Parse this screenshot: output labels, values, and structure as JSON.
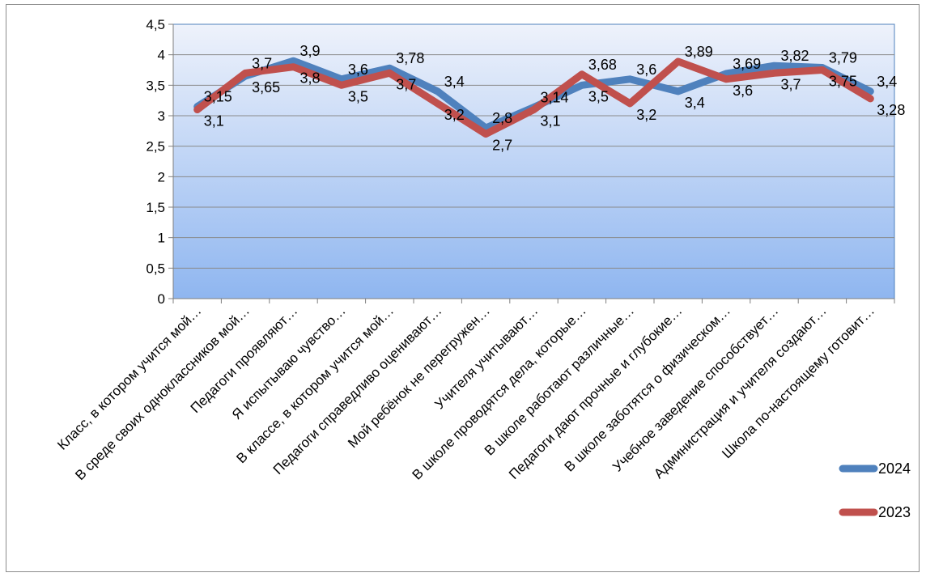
{
  "chart_data": {
    "type": "line",
    "title": "",
    "xlabel": "",
    "ylabel": "",
    "ylim": [
      0,
      4.5
    ],
    "y_ticks": [
      "0",
      "0,5",
      "1",
      "1,5",
      "2",
      "2,5",
      "3",
      "3,5",
      "4",
      "4,5"
    ],
    "grid": true,
    "legend_position": "right",
    "categories": [
      "Класс, в котором учится мой…",
      "В среде своих одноклассников мой…",
      "Педагоги проявляют…",
      "Я испытываю чувство…",
      "В классе, в котором учится мой…",
      "Педагоги справедливо оценивают…",
      "Мой ребёнок не перегружен…",
      "Учителя учитывают…",
      "В школе проводятся дела, которые…",
      "В школе работают различные…",
      "Педагоги дают прочные и глубокие…",
      "В школе заботятся о физическом…",
      "Учебное заведение способствует…",
      "Администрация и учителя создают…",
      "Школа по-настоящему готовит…"
    ],
    "series": [
      {
        "name": "2024",
        "color": "#4f81bd",
        "values": [
          3.15,
          3.65,
          3.9,
          3.6,
          3.78,
          3.4,
          2.8,
          3.14,
          3.5,
          3.6,
          3.4,
          3.69,
          3.82,
          3.79,
          3.4
        ],
        "labels": [
          "3,15",
          "3,65",
          "3,9",
          "3,6",
          "3,78",
          "3,4",
          "2,8",
          "3,14",
          "3,5",
          "3,6",
          "3,4",
          "3,69",
          "3,82",
          "3,79",
          "3,4"
        ]
      },
      {
        "name": "2023",
        "color": "#c0504d",
        "values": [
          3.1,
          3.7,
          3.8,
          3.5,
          3.7,
          3.2,
          2.7,
          3.1,
          3.68,
          3.2,
          3.89,
          3.6,
          3.7,
          3.75,
          3.28
        ],
        "labels": [
          "3,1",
          "3,7",
          "3,8",
          "3,5",
          "3,7",
          "3,2",
          "2,7",
          "3,1",
          "3,68",
          "3,2",
          "3,89",
          "3,6",
          "3,7",
          "3,75",
          "3,28"
        ]
      }
    ],
    "background": {
      "top": "#eef2fb",
      "bottom": "#8fb6f0",
      "border": "#4f81bd"
    }
  }
}
